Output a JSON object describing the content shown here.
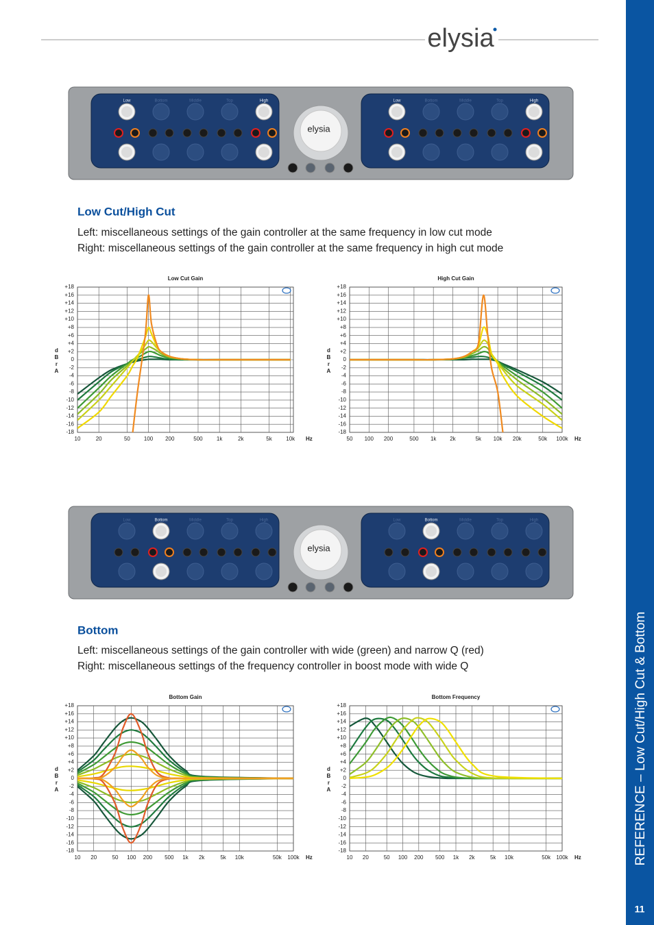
{
  "header": {
    "logo": "elysia"
  },
  "sidebar": {
    "title": "REFERENCE – Low Cut/High Cut & Bottom",
    "page_number": "11"
  },
  "panel": {
    "logo": "elysia",
    "bands": [
      "Low",
      "Bottom",
      "Middle",
      "Top",
      "High"
    ]
  },
  "sections": [
    {
      "heading": "Low Cut/High Cut",
      "lines": [
        "Left: miscellaneous settings of the gain controller at the same frequency in low cut mode",
        "Right: miscellaneous settings of the gain controller at the same frequency in high cut mode"
      ]
    },
    {
      "heading": "Bottom",
      "lines": [
        "Left: miscellaneous settings of the gain controller with wide (green) and narrow Q (red)",
        "Right: miscellaneous settings of the frequency controller in boost mode with wide Q"
      ]
    }
  ],
  "chart_data": [
    {
      "type": "line",
      "title": "Low Cut Gain",
      "ylabel": "dBrA",
      "xlabel": "Hz",
      "xscale": "log",
      "grid": true,
      "xlim": [
        10,
        11000
      ],
      "ylim": [
        -18,
        18
      ],
      "xticks": [
        10,
        20,
        50,
        100,
        200,
        500,
        {
          "value": 1000,
          "label": "1k"
        },
        {
          "value": 2000,
          "label": "2k"
        },
        {
          "value": 5000,
          "label": "5k"
        },
        {
          "value": 10000,
          "label": "10k"
        }
      ],
      "yticks": [
        {
          "value": 18,
          "label": "+18"
        },
        {
          "value": 16,
          "label": "+16"
        },
        {
          "value": 14,
          "label": "+14"
        },
        {
          "value": 12,
          "label": "+12"
        },
        {
          "value": 10,
          "label": "+10"
        },
        {
          "value": 8,
          "label": "+8"
        },
        {
          "value": 6,
          "label": "+6"
        },
        {
          "value": 4,
          "label": "+4"
        },
        {
          "value": 2,
          "label": "+2"
        },
        0,
        -2,
        -4,
        -6,
        -8,
        -10,
        -12,
        -14,
        -16,
        -18
      ],
      "x": [
        10,
        20,
        30,
        50,
        60,
        70,
        90,
        100,
        110,
        130,
        150,
        200,
        300,
        500,
        1000,
        10000
      ],
      "series": [
        {
          "color": "#17573a",
          "values": [
            -8.5,
            -4.5,
            -2.5,
            -1,
            -0.6,
            -0.3,
            0,
            0.1,
            0.1,
            0.1,
            0.1,
            0,
            0,
            0,
            0,
            0
          ]
        },
        {
          "color": "#1f7a3e",
          "values": [
            -10,
            -5.5,
            -3,
            -1,
            -0.4,
            0,
            0.6,
            0.8,
            0.8,
            0.6,
            0.4,
            0.1,
            0,
            0,
            0,
            0
          ]
        },
        {
          "color": "#3f9a35",
          "values": [
            -12,
            -7,
            -4,
            -1,
            0,
            0.5,
            1.6,
            2,
            2,
            1.5,
            1,
            0.4,
            0.1,
            0,
            0,
            0
          ]
        },
        {
          "color": "#8dbb25",
          "values": [
            -13.5,
            -8.5,
            -5,
            -1.5,
            -0.2,
            1,
            2.6,
            3.2,
            3,
            2.3,
            1.5,
            0.6,
            0.2,
            0,
            0,
            0
          ]
        },
        {
          "color": "#c8d018",
          "values": [
            -15,
            -10,
            -6.5,
            -2,
            -0.3,
            1,
            3.6,
            4.8,
            4.5,
            3,
            2,
            0.8,
            0.2,
            0,
            0,
            0
          ]
        },
        {
          "color": "#f0d800",
          "values": [
            -17,
            -13,
            -9,
            -4,
            -1.5,
            0.5,
            5.5,
            8,
            6.5,
            3.5,
            2,
            0.8,
            0.2,
            0,
            0,
            0
          ]
        },
        {
          "color": "#f08a20",
          "values": [
            null,
            null,
            null,
            null,
            -18,
            -8,
            6,
            16,
            9,
            4,
            2,
            0.8,
            0.2,
            0,
            0,
            0
          ]
        }
      ]
    },
    {
      "type": "line",
      "title": "High Cut Gain",
      "ylabel": "dBrA",
      "xlabel": "Hz",
      "xscale": "log",
      "grid": true,
      "xlim": [
        50,
        100000
      ],
      "ylim": [
        -18,
        18
      ],
      "xticks": [
        50,
        100,
        200,
        500,
        {
          "value": 1000,
          "label": "1k"
        },
        {
          "value": 2000,
          "label": "2k"
        },
        {
          "value": 5000,
          "label": "5k"
        },
        {
          "value": 10000,
          "label": "10k"
        },
        {
          "value": 20000,
          "label": "20k"
        },
        {
          "value": 50000,
          "label": "50k"
        },
        {
          "value": 100000,
          "label": "100k"
        }
      ],
      "yticks": [
        {
          "value": 18,
          "label": "+18"
        },
        {
          "value": 16,
          "label": "+16"
        },
        {
          "value": 14,
          "label": "+14"
        },
        {
          "value": 12,
          "label": "+12"
        },
        {
          "value": 10,
          "label": "+10"
        },
        {
          "value": 8,
          "label": "+8"
        },
        {
          "value": 6,
          "label": "+6"
        },
        {
          "value": 4,
          "label": "+4"
        },
        {
          "value": 2,
          "label": "+2"
        },
        0,
        -2,
        -4,
        -6,
        -8,
        -10,
        -12,
        -14,
        -16,
        -18
      ],
      "x": [
        50,
        100,
        500,
        1000,
        2000,
        3000,
        4000,
        5000,
        6000,
        7000,
        8000,
        10000,
        12000,
        20000,
        50000,
        100000
      ],
      "series": [
        {
          "color": "#17573a",
          "values": [
            0,
            0,
            0,
            0,
            0,
            0,
            0.1,
            0.1,
            0.1,
            0.1,
            0,
            -0.4,
            -1,
            -2.5,
            -5.5,
            -8.5
          ]
        },
        {
          "color": "#1f7a3e",
          "values": [
            0,
            0,
            0,
            0,
            0.1,
            0.4,
            0.6,
            0.8,
            0.8,
            0.6,
            0.2,
            -0.4,
            -1.2,
            -3,
            -6.5,
            -10
          ]
        },
        {
          "color": "#3f9a35",
          "values": [
            0,
            0,
            0,
            0,
            0.1,
            0.5,
            1,
            1.5,
            2,
            1.8,
            0.8,
            -0.4,
            -1.5,
            -4,
            -8,
            -12
          ]
        },
        {
          "color": "#8dbb25",
          "values": [
            0,
            0,
            0,
            0,
            0.2,
            0.6,
            1.5,
            2.3,
            3.2,
            2.8,
            1.2,
            -0.5,
            -2,
            -5,
            -9.5,
            -13.5
          ]
        },
        {
          "color": "#c8d018",
          "values": [
            0,
            0,
            0,
            0,
            0.2,
            0.8,
            2,
            3,
            4.8,
            4,
            1.5,
            -0.6,
            -2.5,
            -6.5,
            -11,
            -15
          ]
        },
        {
          "color": "#f0d800",
          "values": [
            0,
            0,
            0,
            0,
            0.2,
            0.8,
            2,
            3.5,
            8,
            6,
            1.5,
            -1,
            -4,
            -9,
            -14,
            -17
          ]
        },
        {
          "color": "#f08a20",
          "values": [
            0,
            0,
            0,
            0,
            0.2,
            0.8,
            2,
            4,
            16,
            6,
            -2,
            -8,
            -18,
            null,
            null,
            null
          ]
        }
      ]
    },
    {
      "type": "line",
      "title": "Bottom Gain",
      "ylabel": "dBrA",
      "xlabel": "Hz",
      "xscale": "log",
      "grid": true,
      "xlim": [
        10,
        100000
      ],
      "ylim": [
        -18,
        18
      ],
      "xticks": [
        10,
        20,
        50,
        100,
        200,
        500,
        {
          "value": 1000,
          "label": "1k"
        },
        {
          "value": 2000,
          "label": "2k"
        },
        {
          "value": 5000,
          "label": "5k"
        },
        {
          "value": 10000,
          "label": "10k"
        },
        {
          "value": 50000,
          "label": "50k"
        },
        {
          "value": 100000,
          "label": "100k"
        }
      ],
      "yticks": [
        {
          "value": 18,
          "label": "+18"
        },
        {
          "value": 16,
          "label": "+16"
        },
        {
          "value": 14,
          "label": "+14"
        },
        {
          "value": 12,
          "label": "+12"
        },
        {
          "value": 10,
          "label": "+10"
        },
        {
          "value": 8,
          "label": "+8"
        },
        {
          "value": 6,
          "label": "+6"
        },
        {
          "value": 4,
          "label": "+4"
        },
        {
          "value": 2,
          "label": "+2"
        },
        0,
        -2,
        -4,
        -6,
        -8,
        -10,
        -12,
        -14,
        -16,
        -18
      ],
      "x": [
        10,
        20,
        30,
        50,
        70,
        100,
        150,
        200,
        300,
        500,
        1000,
        2000,
        100000
      ],
      "series": [
        {
          "color": "#17573a",
          "values": [
            2,
            5.6,
            8.7,
            12.5,
            14.3,
            15,
            14.1,
            12.5,
            9.5,
            5.6,
            2,
            0.5,
            0
          ]
        },
        {
          "color": "#1f7a3e",
          "values": [
            1.6,
            4.5,
            7,
            10,
            11.4,
            12,
            11.3,
            10,
            7.6,
            4.5,
            1.6,
            0.4,
            0
          ]
        },
        {
          "color": "#3f9a35",
          "values": [
            1.2,
            3.4,
            5.2,
            7.5,
            8.6,
            9,
            8.5,
            7.5,
            5.7,
            3.4,
            1.2,
            0.3,
            0
          ]
        },
        {
          "color": "#8dbb25",
          "values": [
            0.8,
            2.3,
            3.5,
            5,
            5.7,
            6,
            5.6,
            5,
            3.8,
            2.3,
            0.8,
            0.2,
            0
          ]
        },
        {
          "color": "#e8d800",
          "values": [
            0.4,
            1.1,
            1.7,
            2.5,
            2.9,
            3,
            2.8,
            2.5,
            1.9,
            1.1,
            0.4,
            0.1,
            0
          ]
        },
        {
          "color": "#e05a28",
          "values": [
            0,
            0.1,
            1,
            6.3,
            12.5,
            16,
            11.6,
            6.3,
            1.5,
            0.1,
            0,
            0,
            0
          ]
        },
        {
          "color": "#f0a020",
          "values": [
            0,
            0,
            0.4,
            2.8,
            5.5,
            7,
            5.1,
            2.8,
            0.7,
            0,
            0,
            0,
            0
          ]
        },
        {
          "color": "#17573a",
          "values": [
            -2,
            -5.6,
            -8.7,
            -12.5,
            -14.3,
            -15,
            -14.1,
            -12.5,
            -9.5,
            -5.6,
            -2,
            -0.5,
            0
          ]
        },
        {
          "color": "#1f7a3e",
          "values": [
            -1.6,
            -4.5,
            -7,
            -10,
            -11.4,
            -12,
            -11.3,
            -10,
            -7.6,
            -4.5,
            -1.6,
            -0.4,
            0
          ]
        },
        {
          "color": "#3f9a35",
          "values": [
            -1.2,
            -3.4,
            -5.2,
            -7.5,
            -8.6,
            -9,
            -8.5,
            -7.5,
            -5.7,
            -3.4,
            -1.2,
            -0.3,
            0
          ]
        },
        {
          "color": "#8dbb25",
          "values": [
            -0.8,
            -2.3,
            -3.5,
            -5,
            -5.7,
            -6,
            -5.6,
            -5,
            -3.8,
            -2.3,
            -0.8,
            -0.2,
            0
          ]
        },
        {
          "color": "#e8d800",
          "values": [
            -0.4,
            -1.1,
            -1.7,
            -2.5,
            -2.9,
            -3,
            -2.8,
            -2.5,
            -1.9,
            -1.1,
            -0.4,
            -0.1,
            0
          ]
        },
        {
          "color": "#e05a28",
          "values": [
            0,
            -0.1,
            -1,
            -6.3,
            -12.5,
            -16,
            -11.6,
            -6.3,
            -1.5,
            -0.1,
            0,
            0,
            0
          ]
        },
        {
          "color": "#f0a020",
          "values": [
            0,
            0,
            -0.4,
            -2.8,
            -5.5,
            -7,
            -5.1,
            -2.8,
            -0.7,
            0,
            0,
            0,
            0
          ]
        }
      ]
    },
    {
      "type": "line",
      "title": "Bottom Frequency",
      "ylabel": "dBrA",
      "xlabel": "Hz",
      "xscale": "log",
      "grid": true,
      "xlim": [
        10,
        100000
      ],
      "ylim": [
        -18,
        18
      ],
      "xticks": [
        10,
        20,
        50,
        100,
        200,
        500,
        {
          "value": 1000,
          "label": "1k"
        },
        {
          "value": 2000,
          "label": "2k"
        },
        {
          "value": 5000,
          "label": "5k"
        },
        {
          "value": 10000,
          "label": "10k"
        },
        {
          "value": 50000,
          "label": "50k"
        },
        {
          "value": 100000,
          "label": "100k"
        }
      ],
      "yticks": [
        {
          "value": 18,
          "label": "+18"
        },
        {
          "value": 16,
          "label": "+16"
        },
        {
          "value": 14,
          "label": "+14"
        },
        {
          "value": 12,
          "label": "+12"
        },
        {
          "value": 10,
          "label": "+10"
        },
        {
          "value": 8,
          "label": "+8"
        },
        {
          "value": 6,
          "label": "+6"
        },
        {
          "value": 4,
          "label": "+4"
        },
        {
          "value": 2,
          "label": "+2"
        },
        0,
        -2,
        -4,
        -6,
        -8,
        -10,
        -12,
        -14,
        -16,
        -18
      ],
      "x": [
        10,
        20,
        30,
        50,
        70,
        100,
        150,
        200,
        300,
        500,
        700,
        1000,
        2000,
        5000,
        100000
      ],
      "series": [
        {
          "color": "#14583a",
          "values": [
            12.9,
            14.9,
            13.1,
            9,
            6.2,
            3.7,
            1.8,
            1,
            0.4,
            0.1,
            0,
            0,
            0,
            0,
            0
          ]
        },
        {
          "color": "#1d7a3f",
          "values": [
            6.8,
            12.6,
            14.7,
            14.4,
            12.4,
            9.5,
            6,
            4,
            2,
            0.6,
            0.3,
            0.1,
            0,
            0,
            0
          ]
        },
        {
          "color": "#3d9a36",
          "values": [
            3.6,
            8.9,
            12.3,
            14.9,
            14.8,
            13.1,
            9.8,
            7.3,
            4.3,
            1.7,
            0.8,
            0.3,
            0,
            0,
            0
          ]
        },
        {
          "color": "#8fbf2a",
          "values": [
            1,
            3.9,
            6.9,
            11.3,
            13.7,
            14.9,
            14.3,
            12.7,
            9.4,
            5.1,
            3,
            1.5,
            0.3,
            0,
            0
          ]
        },
        {
          "color": "#c8d21a",
          "values": [
            0.2,
            1.3,
            2.8,
            6.1,
            9,
            12,
            14.4,
            15,
            13.9,
            10.1,
            7.2,
            4.5,
            1.3,
            0.1,
            0
          ]
        },
        {
          "color": "#f0e000",
          "values": [
            0,
            0.3,
            0.9,
            2.6,
            4.5,
            7.2,
            10.7,
            13,
            14.8,
            14.1,
            12,
            9,
            3.6,
            0.6,
            0
          ]
        }
      ]
    }
  ]
}
